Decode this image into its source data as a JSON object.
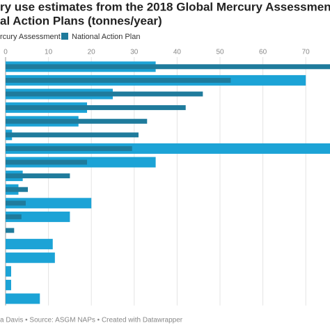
{
  "chart_data": {
    "type": "grouped-hbar",
    "title": [
      "ry use estimates from the 2018 Global Mercury Assessment",
      "al Action Plans (tonnes/year)"
    ],
    "legend": [
      "rcury Assessment"
    ],
    "footer": "a Davis • Source: ASGM NAPs • Created with Datawrapper",
    "series": [
      {
        "name": "rcury Assessment",
        "color": "#1ca3d6",
        "values": [
          35,
          70,
          25,
          19,
          17,
          1.5,
          77,
          35,
          4,
          3,
          20,
          15,
          null,
          11,
          11.5,
          1.3,
          1.3,
          8
        ]
      },
      {
        "name": "National Action Plan",
        "color": "#1f7b9c",
        "values": [
          77,
          52.5,
          46,
          42,
          33,
          31,
          29.5,
          19,
          15,
          5.2,
          4.7,
          3.7,
          2,
          null,
          null,
          null,
          null,
          null
        ]
      }
    ],
    "xlim": [
      0,
      75
    ],
    "xticks": [
      0,
      10,
      20,
      30,
      40,
      50,
      60,
      70
    ],
    "grid": true
  }
}
